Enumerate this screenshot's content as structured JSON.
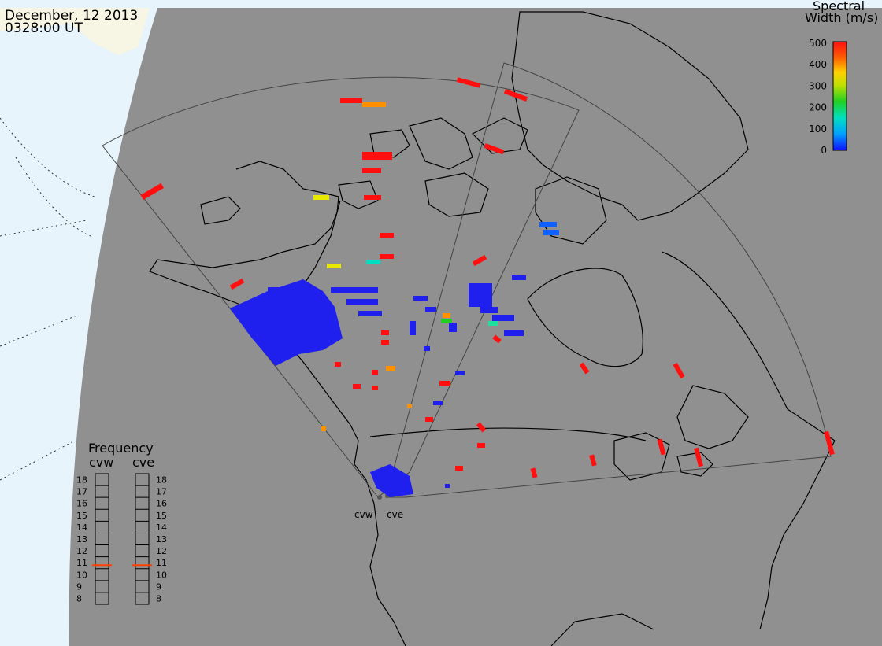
{
  "header": {
    "date": "December, 12 2013",
    "time": "0328:00 UT"
  },
  "colorbar": {
    "title_line1": "Spectral",
    "title_line2": "Width (m/s)",
    "ticks": [
      "500",
      "400",
      "300",
      "200",
      "100",
      "0"
    ],
    "min": 0,
    "max": 500
  },
  "radars": [
    {
      "id": "cvw",
      "label": "cvw",
      "frequency_mhz": 10.8
    },
    {
      "id": "cve",
      "label": "cve",
      "frequency_mhz": 10.8
    }
  ],
  "frequency_panel": {
    "title": "Frequency",
    "left_label": "cvw",
    "right_label": "cve",
    "scale": [
      "18",
      "17",
      "16",
      "15",
      "14",
      "13",
      "12",
      "11",
      "10",
      "9",
      "8"
    ],
    "min": 8,
    "max": 18
  },
  "colors": {
    "map_background": "#909090",
    "ocean_outside": "#e8f4fb",
    "land_outside": "#f7f5e4",
    "coastline": "#000000",
    "fov_outline": "#444444"
  }
}
